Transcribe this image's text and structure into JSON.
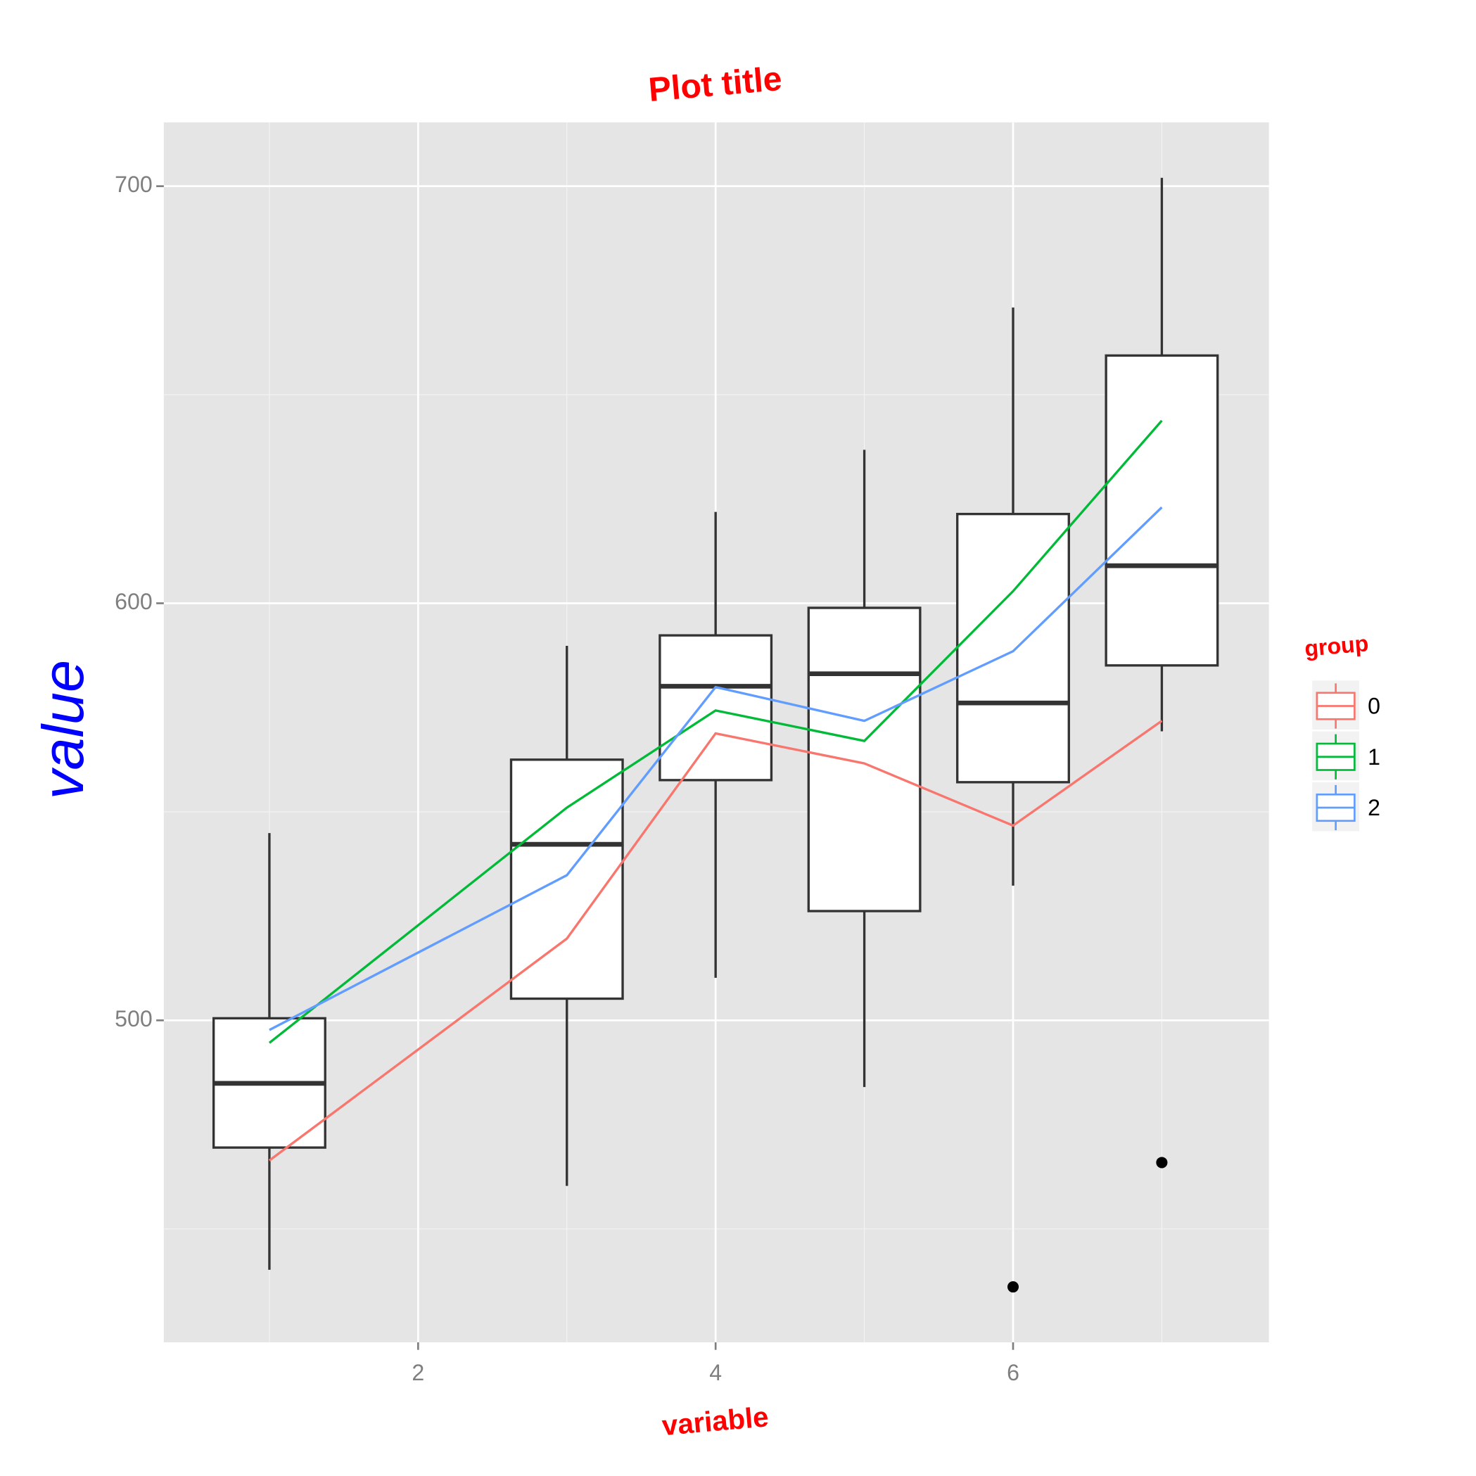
{
  "chart_data": {
    "type": "box",
    "title": "Plot title",
    "x_label": "variable",
    "y_label": "value",
    "x": [
      1,
      3,
      4,
      5,
      6,
      7
    ],
    "boxes": [
      {
        "low": 440.2,
        "q1": 469.5,
        "median": 484.9,
        "q3": 500.5,
        "high": 544.9,
        "outliers": []
      },
      {
        "low": 460.3,
        "q1": 505.2,
        "median": 542.2,
        "q3": 562.5,
        "high": 589.8,
        "outliers": []
      },
      {
        "low": 510.2,
        "q1": 557.6,
        "median": 580.1,
        "q3": 592.3,
        "high": 621.9,
        "outliers": []
      },
      {
        "low": 484.0,
        "q1": 526.2,
        "median": 583.1,
        "q3": 598.9,
        "high": 636.8,
        "outliers": []
      },
      {
        "low": 532.3,
        "q1": 557.1,
        "median": 576.1,
        "q3": 621.4,
        "high": 670.9,
        "outliers": [
          436.1
        ]
      },
      {
        "low": 569.3,
        "q1": 585.1,
        "median": 609.0,
        "q3": 659.4,
        "high": 702.0,
        "outliers": [
          465.9
        ]
      }
    ],
    "box_color": "#333333",
    "legend_title": "group",
    "series": [
      {
        "name": "0",
        "color": "#F8766D",
        "values": [
          466.4,
          519.6,
          568.8,
          561.6,
          546.7,
          571.8
        ]
      },
      {
        "name": "1",
        "color": "#00BA38",
        "values": [
          494.6,
          551.0,
          574.3,
          567.0,
          602.9,
          643.8
        ]
      },
      {
        "name": "2",
        "color": "#619CFF",
        "values": [
          497.7,
          534.8,
          579.9,
          571.8,
          588.5,
          623.0
        ]
      }
    ],
    "xlim": [
      0.29,
      7.72
    ],
    "ylim": [
      422.8,
      715.3
    ],
    "xticks": [
      2,
      4,
      6
    ],
    "yticks": [
      500,
      600,
      700
    ],
    "x_minor_grid": [
      1,
      3,
      5,
      7
    ],
    "y_minor_grid": [
      450,
      550,
      650
    ],
    "grid": true,
    "legend_position": "right"
  }
}
